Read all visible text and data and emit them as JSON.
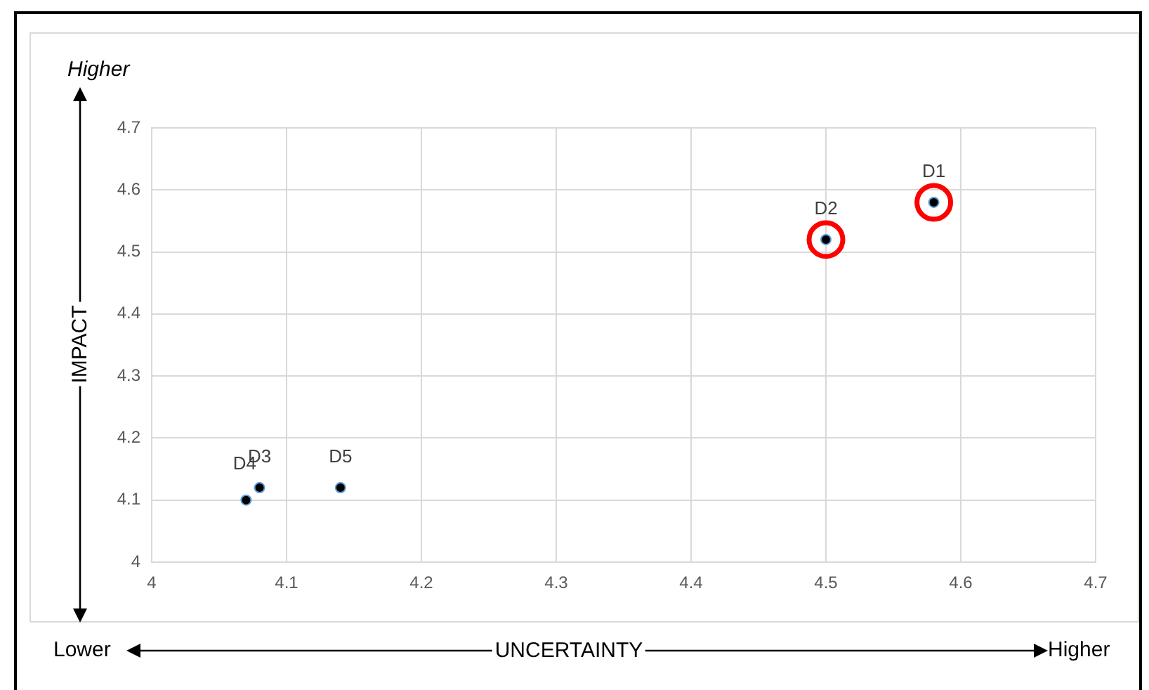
{
  "chart_data": {
    "type": "scatter",
    "xlabel": "UNCERTAINTY",
    "ylabel": "IMPACT",
    "annotations": [
      "Higher",
      "Lower",
      "Higher"
    ],
    "xlim": [
      4,
      4.7
    ],
    "xticks": [
      4,
      4.1,
      4.2,
      4.3,
      4.4,
      4.5,
      4.6,
      4.7
    ],
    "ylim": [
      4,
      4.7
    ],
    "yticks": [
      4,
      4.1,
      4.2,
      4.3,
      4.4,
      4.5,
      4.6,
      4.7
    ],
    "grid": true,
    "legend": false,
    "marker": "circle",
    "series": [
      {
        "name": "D1",
        "color": "#000000",
        "x": [
          4.58
        ],
        "values": [
          4.58
        ]
      },
      {
        "name": "D2",
        "color": "#000000",
        "x": [
          4.5
        ],
        "values": [
          4.52
        ]
      },
      {
        "name": "D3",
        "color": "#000000",
        "x": [
          4.08
        ],
        "values": [
          4.12
        ]
      },
      {
        "name": "D4",
        "color": "#000000",
        "x": [
          4.07
        ],
        "values": [
          4.1
        ]
      },
      {
        "name": "D5",
        "color": "#000000",
        "x": [
          4.14
        ],
        "values": [
          4.12
        ]
      },
      {
        "color": "#ff0000",
        "x": [
          4.5,
          4.58
        ],
        "values": [
          4.52,
          4.58
        ]
      }
    ]
  }
}
